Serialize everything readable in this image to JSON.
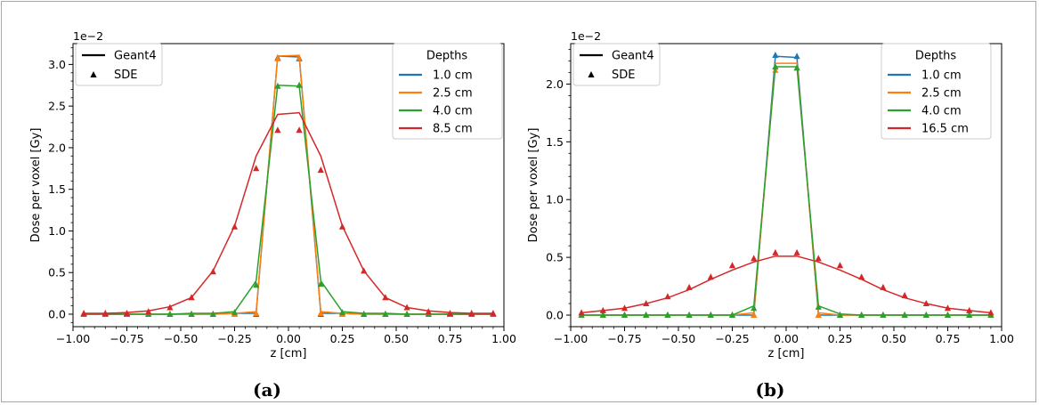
{
  "captions": [
    "(a)",
    "(b)"
  ],
  "colors": {
    "frame": "#a8a8a8",
    "legend_border": "#cccccc",
    "series": [
      "#1f77b4",
      "#ff7f0e",
      "#2ca02c",
      "#d62728"
    ]
  },
  "chart_data": [
    {
      "type": "line",
      "xlabel": "z [cm]",
      "ylabel": "Dose per voxel [Gy]",
      "offset_label": "1e−2",
      "xlim": [
        -1.0,
        1.0
      ],
      "ylim": [
        -0.15,
        3.25
      ],
      "xticks": [
        -1.0,
        -0.75,
        -0.5,
        -0.25,
        0.0,
        0.25,
        0.5,
        0.75,
        1.0
      ],
      "xtick_labels": [
        "−1.00",
        "−0.75",
        "−0.50",
        "−0.25",
        "0.00",
        "0.25",
        "0.50",
        "0.75",
        "1.00"
      ],
      "yticks": [
        0.0,
        0.5,
        1.0,
        1.5,
        2.0,
        2.5,
        3.0
      ],
      "ytick_labels": [
        "0.0",
        "0.5",
        "1.0",
        "1.5",
        "2.0",
        "2.5",
        "3.0"
      ],
      "grid": false,
      "legend_styles": {
        "title": "",
        "position": "top-left",
        "entries": [
          "Geant4",
          "SDE"
        ]
      },
      "legend_depths": {
        "title": "Depths",
        "position": "top-right"
      },
      "x": [
        -0.95,
        -0.85,
        -0.75,
        -0.65,
        -0.55,
        -0.45,
        -0.35,
        -0.25,
        -0.15,
        -0.05,
        0.05,
        0.15,
        0.25,
        0.35,
        0.45,
        0.55,
        0.65,
        0.75,
        0.85,
        0.95
      ],
      "series": [
        {
          "name": "1.0 cm",
          "geant4": [
            0,
            0,
            0,
            0,
            0,
            0,
            0,
            0.01,
            0.01,
            3.1,
            3.09,
            0.01,
            0.01,
            0,
            0,
            0,
            0,
            0,
            0,
            0
          ],
          "sde": [
            0,
            0,
            0,
            0,
            0,
            0,
            0,
            0,
            0,
            3.08,
            3.07,
            0,
            0,
            0,
            0,
            0,
            0,
            0,
            0,
            0
          ]
        },
        {
          "name": "2.5 cm",
          "geant4": [
            0,
            0,
            0,
            0,
            0,
            0,
            0,
            0.01,
            0.03,
            3.1,
            3.11,
            0.03,
            0.01,
            0,
            0,
            0,
            0,
            0,
            0,
            0
          ],
          "sde": [
            0,
            0,
            0,
            0,
            0,
            0,
            0,
            0,
            0.01,
            3.07,
            3.08,
            0.01,
            0,
            0,
            0,
            0,
            0,
            0,
            0,
            0
          ]
        },
        {
          "name": "4.0 cm",
          "geant4": [
            0,
            0,
            0,
            0,
            0,
            0.01,
            0.01,
            0.03,
            0.4,
            2.75,
            2.74,
            0.4,
            0.03,
            0.01,
            0.01,
            0,
            0,
            0,
            0,
            0
          ],
          "sde": [
            0,
            0,
            0,
            0,
            0,
            0,
            0,
            0.02,
            0.35,
            2.74,
            2.75,
            0.36,
            0.02,
            0,
            0,
            0,
            0,
            0,
            0,
            0
          ]
        },
        {
          "name": "8.5 cm",
          "geant4": [
            0.01,
            0.01,
            0.02,
            0.04,
            0.09,
            0.2,
            0.52,
            1.06,
            1.9,
            2.4,
            2.42,
            1.9,
            1.06,
            0.52,
            0.2,
            0.08,
            0.04,
            0.02,
            0.01,
            0.01
          ],
          "sde": [
            0.01,
            0.01,
            0.01,
            0.03,
            0.08,
            0.2,
            0.51,
            1.05,
            1.75,
            2.21,
            2.21,
            1.73,
            1.05,
            0.52,
            0.2,
            0.08,
            0.03,
            0.01,
            0.01,
            0.01
          ]
        }
      ]
    },
    {
      "type": "line",
      "xlabel": "z [cm]",
      "ylabel": "Dose per voxel [Gy]",
      "offset_label": "1e−2",
      "xlim": [
        -1.0,
        1.0
      ],
      "ylim": [
        -0.1,
        2.35
      ],
      "xticks": [
        -1.0,
        -0.75,
        -0.5,
        -0.25,
        0.0,
        0.25,
        0.5,
        0.75,
        1.0
      ],
      "xtick_labels": [
        "−1.00",
        "−0.75",
        "−0.50",
        "−0.25",
        "0.00",
        "0.25",
        "0.50",
        "0.75",
        "1.00"
      ],
      "yticks": [
        0.0,
        0.5,
        1.0,
        1.5,
        2.0
      ],
      "ytick_labels": [
        "0.0",
        "0.5",
        "1.0",
        "1.5",
        "2.0"
      ],
      "grid": false,
      "legend_styles": {
        "title": "",
        "position": "top-left",
        "entries": [
          "Geant4",
          "SDE"
        ]
      },
      "legend_depths": {
        "title": "Depths",
        "position": "top-right"
      },
      "x": [
        -0.95,
        -0.85,
        -0.75,
        -0.65,
        -0.55,
        -0.45,
        -0.35,
        -0.25,
        -0.15,
        -0.05,
        0.05,
        0.15,
        0.25,
        0.35,
        0.45,
        0.55,
        0.65,
        0.75,
        0.85,
        0.95
      ],
      "series": [
        {
          "name": "1.0 cm",
          "geant4": [
            0,
            0,
            0,
            0,
            0,
            0,
            0,
            0,
            0,
            2.24,
            2.23,
            0,
            0,
            0,
            0,
            0,
            0,
            0,
            0,
            0
          ],
          "sde": [
            0,
            0,
            0,
            0,
            0,
            0,
            0,
            0,
            0,
            2.25,
            2.24,
            0,
            0,
            0,
            0,
            0,
            0,
            0,
            0,
            0
          ]
        },
        {
          "name": "2.5 cm",
          "geant4": [
            0,
            0,
            0,
            0,
            0,
            0,
            0,
            0,
            0.02,
            2.18,
            2.18,
            0.02,
            0,
            0,
            0,
            0,
            0,
            0,
            0,
            0
          ],
          "sde": [
            0,
            0,
            0,
            0,
            0,
            0,
            0,
            0,
            0,
            2.12,
            2.14,
            0,
            0,
            0,
            0,
            0,
            0,
            0,
            0,
            0
          ]
        },
        {
          "name": "4.0 cm",
          "geant4": [
            0,
            0,
            0,
            0,
            0,
            0,
            0,
            0,
            0.08,
            2.15,
            2.15,
            0.08,
            0.01,
            0,
            0,
            0,
            0,
            0,
            0,
            0
          ],
          "sde": [
            0,
            0,
            0,
            0,
            0,
            0,
            0,
            0,
            0.06,
            2.15,
            2.14,
            0.07,
            0,
            0,
            0,
            0,
            0,
            0,
            0,
            0
          ]
        },
        {
          "name": "16.5 cm",
          "geant4": [
            0.02,
            0.04,
            0.06,
            0.1,
            0.15,
            0.22,
            0.31,
            0.39,
            0.46,
            0.51,
            0.51,
            0.46,
            0.39,
            0.31,
            0.22,
            0.15,
            0.1,
            0.06,
            0.04,
            0.02
          ],
          "sde": [
            0.02,
            0.04,
            0.06,
            0.1,
            0.16,
            0.24,
            0.33,
            0.43,
            0.49,
            0.54,
            0.54,
            0.49,
            0.43,
            0.33,
            0.24,
            0.17,
            0.1,
            0.06,
            0.04,
            0.02
          ]
        }
      ]
    }
  ]
}
